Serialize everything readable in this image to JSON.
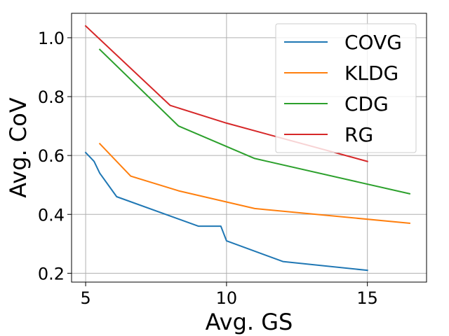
{
  "chart_data": {
    "type": "line",
    "title": "",
    "xlabel": "Avg. GS",
    "ylabel": "Avg. CoV",
    "xlim": [
      4.5,
      17.1
    ],
    "ylim": [
      0.17,
      1.083
    ],
    "xticks": [
      5,
      10,
      15
    ],
    "xtick_labels": [
      "5",
      "10",
      "15"
    ],
    "yticks": [
      0.2,
      0.4,
      0.6,
      0.8,
      1.0
    ],
    "ytick_labels": [
      "0.2",
      "0.4",
      "0.6",
      "0.8",
      "1.0"
    ],
    "grid": true,
    "legend_position": "top-right",
    "series": [
      {
        "name": "COVG",
        "color": "#1f77b4",
        "x": [
          5.0,
          5.3,
          5.5,
          6.1,
          9.0,
          9.8,
          10.0,
          12.0,
          15.0
        ],
        "y": [
          0.61,
          0.58,
          0.54,
          0.46,
          0.36,
          0.36,
          0.31,
          0.24,
          0.21
        ]
      },
      {
        "name": "KLDG",
        "color": "#ff7f0e",
        "x": [
          5.5,
          6.6,
          8.3,
          11.0,
          16.5
        ],
        "y": [
          0.64,
          0.53,
          0.48,
          0.42,
          0.37
        ]
      },
      {
        "name": "CDG",
        "color": "#2ca02c",
        "x": [
          5.5,
          8.3,
          11.0,
          16.5
        ],
        "y": [
          0.96,
          0.7,
          0.59,
          0.47
        ]
      },
      {
        "name": "RG",
        "color": "#d62728",
        "x": [
          5.0,
          8.0,
          10.0,
          15.0
        ],
        "y": [
          1.04,
          0.77,
          0.71,
          0.58
        ]
      }
    ]
  }
}
